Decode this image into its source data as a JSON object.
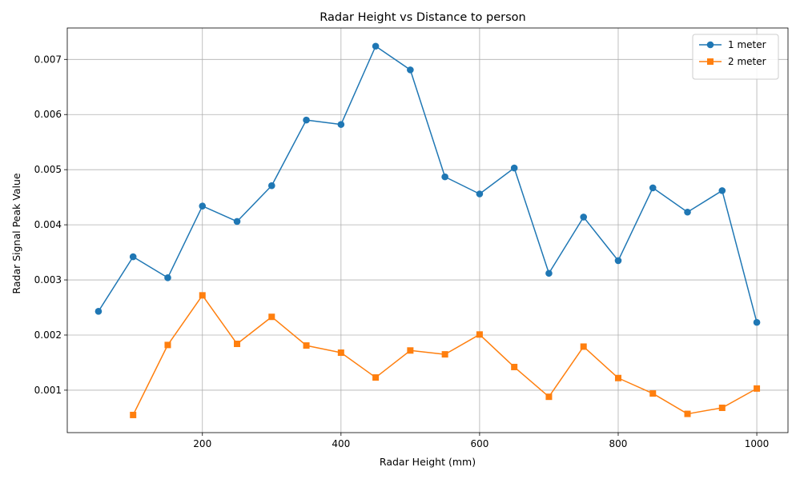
{
  "chart_data": {
    "type": "line",
    "title": "Radar Height vs Distance to person",
    "xlabel": "Radar Height (mm)",
    "ylabel": "Radar Signal Peak Value",
    "xlim": [
      5,
      1045
    ],
    "ylim": [
      0.00023,
      0.00757
    ],
    "xticks": [
      200,
      400,
      600,
      800,
      1000
    ],
    "yticks": [
      0.001,
      0.002,
      0.003,
      0.004,
      0.005,
      0.006,
      0.007
    ],
    "xtick_labels": [
      "200",
      "400",
      "600",
      "800",
      "1000"
    ],
    "ytick_labels": [
      "0.001",
      "0.002",
      "0.003",
      "0.004",
      "0.005",
      "0.006",
      "0.007"
    ],
    "grid": true,
    "legend_position": "top-right",
    "series": [
      {
        "name": "1 meter",
        "color": "#1f77b4",
        "marker": "circle",
        "x": [
          50,
          100,
          150,
          200,
          250,
          300,
          350,
          400,
          450,
          500,
          550,
          600,
          650,
          700,
          750,
          800,
          850,
          900,
          950,
          1000
        ],
        "y": [
          0.00243,
          0.00342,
          0.00304,
          0.00434,
          0.00406,
          0.00471,
          0.0059,
          0.00582,
          0.00724,
          0.00681,
          0.00487,
          0.00456,
          0.00503,
          0.00312,
          0.00414,
          0.00335,
          0.00467,
          0.00423,
          0.00462,
          0.00223
        ]
      },
      {
        "name": "2 meter",
        "color": "#ff7f0e",
        "marker": "square",
        "x": [
          100,
          150,
          200,
          250,
          300,
          350,
          400,
          450,
          500,
          550,
          600,
          650,
          700,
          750,
          800,
          850,
          900,
          950,
          1000
        ],
        "y": [
          0.00055,
          0.00182,
          0.00272,
          0.00184,
          0.00233,
          0.00181,
          0.00168,
          0.00123,
          0.00172,
          0.00165,
          0.00201,
          0.00142,
          0.00088,
          0.00179,
          0.00122,
          0.00094,
          0.00057,
          0.00068,
          0.00103
        ]
      }
    ]
  }
}
